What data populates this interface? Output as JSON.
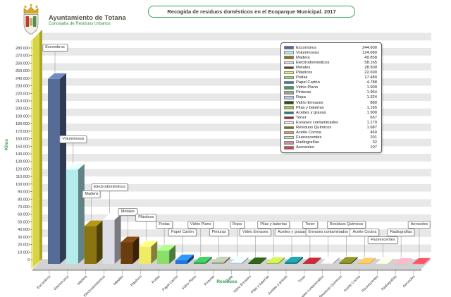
{
  "header": {
    "org": "Ayuntamiento de Totana",
    "dept": "Concejalía de Residuos Urbanos"
  },
  "title": "Recogida de residuos domésticos en el Ecoparque Municipal. 2017",
  "chart_data": {
    "type": "bar",
    "style": "3d-column",
    "title": "Recogida de residuos domésticos en el Ecoparque Municipal. 2017",
    "xlabel": "Residuos",
    "ylabel": "Kilos",
    "ylim": [
      0,
      280000
    ],
    "ytick_step": 10000,
    "grid": "horizontal-alternating-bands",
    "legend_position": "top-right",
    "categories": [
      "Escombros",
      "Voluminosos",
      "Madera",
      "Electrodomésticos",
      "Metales",
      "Plásticos",
      "Podas",
      "Papel Cartón",
      "Vidrio Plano",
      "Pinturas",
      "Ropa",
      "Vidrio Envases",
      "Pilas y baterías",
      "Aceites y grasas",
      "Toner",
      "Envases contaminados",
      "Residuos Químicos",
      "Aceite Cocina",
      "Fluorescentes",
      "Radiografías",
      "Aerosoles"
    ],
    "values": [
      244600,
      124680,
      49858,
      58165,
      28500,
      22690,
      17480,
      4788,
      1900,
      1964,
      1324,
      880,
      1165,
      1900,
      657,
      1170,
      1687,
      460,
      201,
      32,
      107
    ],
    "colors": [
      "#566b96",
      "#b4ecee",
      "#8a7410",
      "#dcdde6",
      "#6b3c0e",
      "#eeeb64",
      "#8ade6c",
      "#2576d9",
      "#35a251",
      "#9aa28e",
      "#b9c5e9",
      "#23500f",
      "#a2bf3e",
      "#18828a",
      "#a01f2a",
      "#f6ebe9",
      "#70761c",
      "#df9f4e",
      "#cfe9b2",
      "#c68e9b",
      "#d0414c"
    ],
    "accent_colors": {
      "axis_title_green": "#2e9e50",
      "band_gray": "#e8e8e8",
      "wall_yellow": "#d8d544",
      "floor_gray": "#d2d2d2"
    }
  }
}
